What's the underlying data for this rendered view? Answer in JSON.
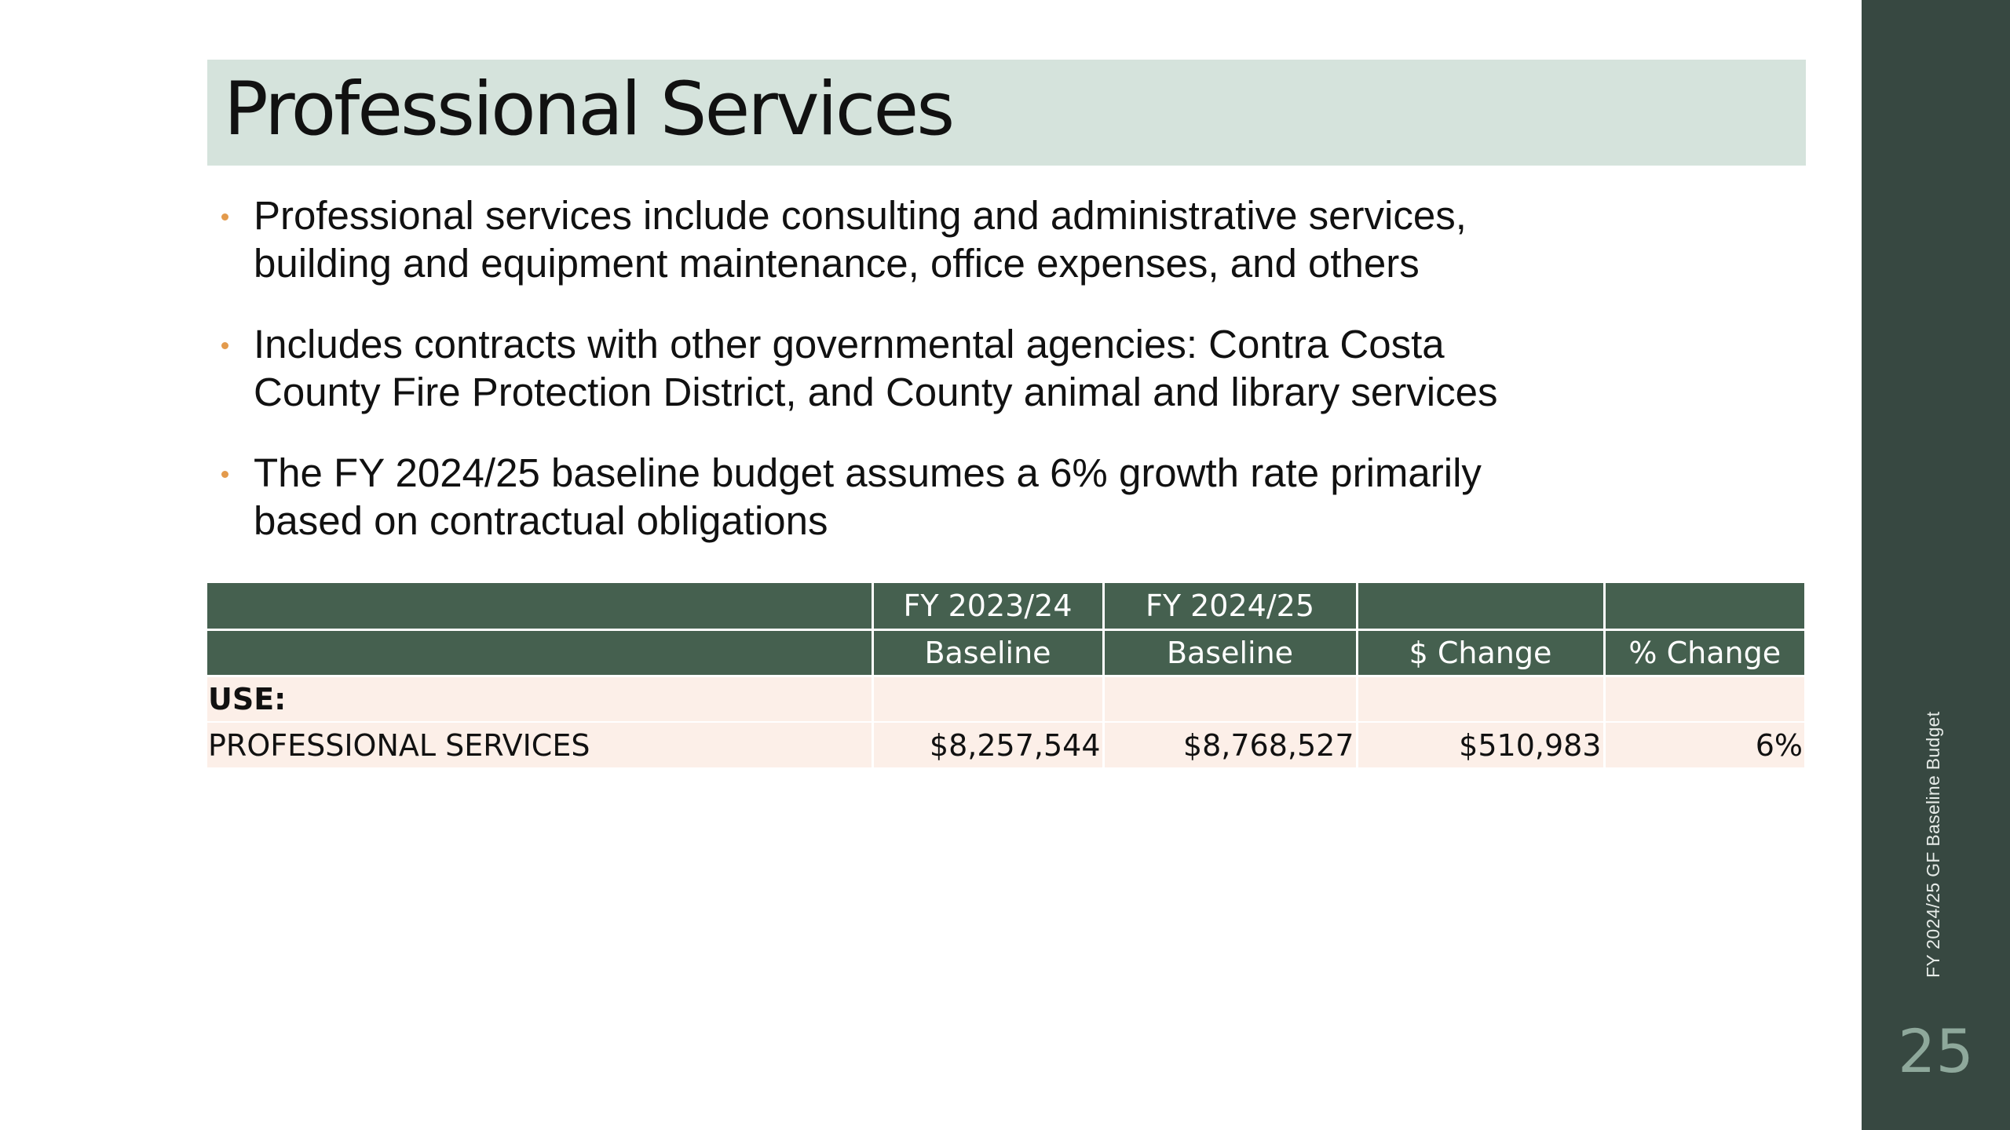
{
  "slide": {
    "title": "Professional Services",
    "bullets": [
      {
        "line1": "Professional services include consulting and administrative services,",
        "line2": "building and equipment maintenance, office expenses, and others"
      },
      {
        "line1": "Includes contracts with other governmental agencies: Contra Costa",
        "line2": "County Fire Protection District, and County animal and library services"
      },
      {
        "line1": "The FY 2024/25 baseline budget assumes a 6% growth rate primarily",
        "line2": "based on contractual obligations"
      }
    ],
    "sidebar_caption": "FY 2024/25 GF Baseline Budget",
    "page_number": "25"
  },
  "table": {
    "header_row1": [
      "",
      "FY 2023/24",
      "FY 2024/25",
      "",
      ""
    ],
    "header_row2": [
      "",
      "Baseline",
      "Baseline",
      "$ Change",
      "% Change"
    ],
    "section_label": "USE:",
    "row": {
      "label": "PROFESSIONAL SERVICES",
      "fy2023": "$8,257,544",
      "fy2024": "$8,768,527",
      "change": "$510,983",
      "pct": "6%"
    }
  },
  "colors": {
    "title_bar": "#d5e3dc",
    "table_header": "#45604f",
    "table_body": "#fcefe8",
    "sidebar": "#374841",
    "bullet_accent": "#e39a4c"
  }
}
